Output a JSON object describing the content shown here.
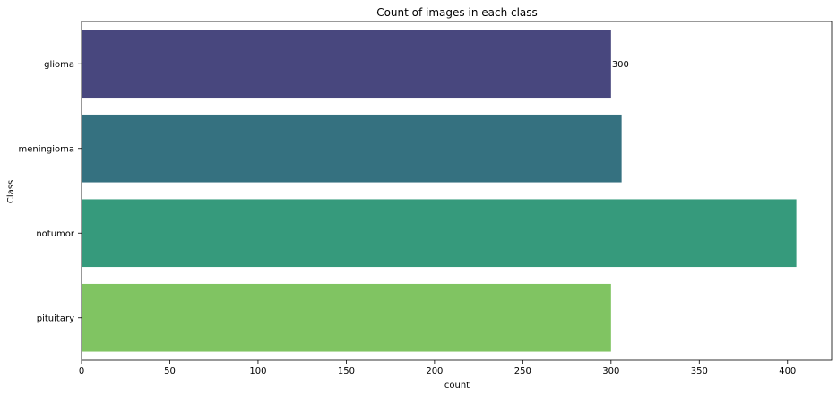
{
  "chart_data": {
    "type": "bar",
    "orientation": "horizontal",
    "title": "Count of images in each class",
    "xlabel": "count",
    "ylabel": "Class",
    "categories": [
      "glioma",
      "meningioma",
      "notumor",
      "pituitary"
    ],
    "values": [
      300,
      306,
      405,
      300
    ],
    "colors": [
      "#482878",
      "#26828e",
      "#35b779",
      "#7ad151"
    ],
    "bar_colors": [
      "#48477e",
      "#357180",
      "#369a7c",
      "#80c462"
    ],
    "xlim": [
      0,
      425
    ],
    "xticks": [
      0,
      50,
      100,
      150,
      200,
      250,
      300,
      350,
      400
    ],
    "xtick_labels": [
      "0",
      "50",
      "100",
      "150",
      "200",
      "250",
      "300",
      "350",
      "400"
    ],
    "data_labels": [
      {
        "category": "glioma",
        "text": "300"
      }
    ],
    "grid": false,
    "legend": "none"
  }
}
